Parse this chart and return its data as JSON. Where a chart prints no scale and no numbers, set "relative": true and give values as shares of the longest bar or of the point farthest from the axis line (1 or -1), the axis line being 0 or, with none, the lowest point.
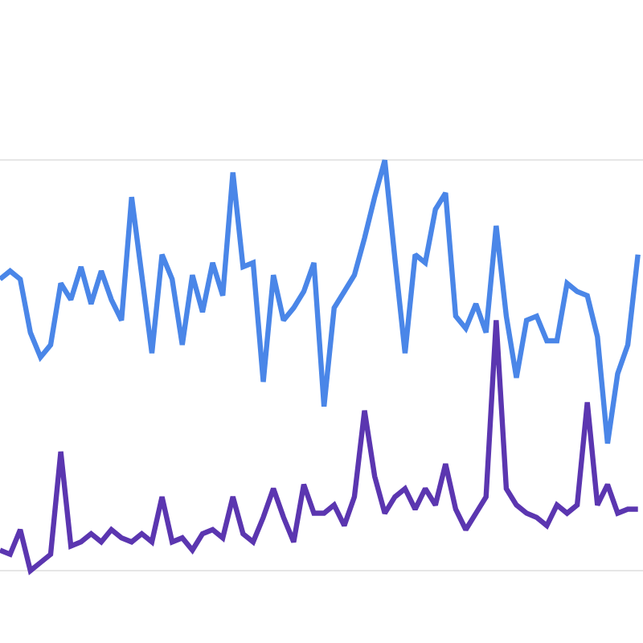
{
  "chart_data": {
    "type": "line",
    "relative": true,
    "grid": "y",
    "marker": "none",
    "line_style": "solid",
    "categories": [
      null,
      null,
      null,
      null,
      null,
      null,
      null,
      null,
      null,
      null,
      null,
      null,
      null,
      null,
      null,
      null,
      null,
      null,
      null,
      null,
      null,
      null,
      null,
      null,
      null,
      null,
      null,
      null,
      null,
      null,
      null,
      null,
      null,
      null,
      null,
      null,
      null,
      null,
      null,
      null,
      null,
      null,
      null,
      null,
      null,
      null,
      null,
      null,
      null,
      null,
      null,
      null,
      null,
      null,
      null,
      null,
      null,
      null,
      null,
      null,
      null,
      null,
      null,
      null
    ],
    "series": [
      {
        "color": "#4a86e8",
        "values": [
          0.71,
          0.73,
          0.71,
          0.58,
          0.52,
          0.55,
          0.7,
          0.66,
          0.74,
          0.65,
          0.73,
          0.66,
          0.61,
          0.91,
          0.72,
          0.53,
          0.77,
          0.71,
          0.55,
          0.72,
          0.63,
          0.75,
          0.67,
          0.97,
          0.74,
          0.75,
          0.46,
          0.72,
          0.61,
          0.64,
          0.68,
          0.75,
          0.4,
          0.64,
          0.68,
          0.72,
          0.81,
          0.91,
          1,
          0.76,
          0.53,
          0.77,
          0.75,
          0.88,
          0.92,
          0.62,
          0.59,
          0.65,
          0.58,
          0.84,
          0.62,
          0.47,
          0.61,
          0.62,
          0.56,
          0.56,
          0.7,
          0.68,
          0.67,
          0.57,
          0.31,
          0.48,
          0.55,
          0.77
        ]
      },
      {
        "color": "#5b36b0",
        "values": [
          0.05,
          0.04,
          0.1,
          0,
          0.02,
          0.04,
          0.29,
          0.06,
          0.07,
          0.09,
          0.07,
          0.1,
          0.08,
          0.07,
          0.09,
          0.07,
          0.18,
          0.07,
          0.08,
          0.05,
          0.09,
          0.1,
          0.08,
          0.18,
          0.09,
          0.07,
          0.13,
          0.2,
          0.13,
          0.07,
          0.21,
          0.14,
          0.14,
          0.16,
          0.11,
          0.18,
          0.39,
          0.23,
          0.14,
          0.18,
          0.2,
          0.15,
          0.2,
          0.16,
          0.26,
          0.15,
          0.1,
          0.14,
          0.18,
          0.61,
          0.2,
          0.16,
          0.14,
          0.13,
          0.11,
          0.16,
          0.14,
          0.16,
          0.41,
          0.16,
          0.21,
          0.14,
          0.15,
          0.15
        ]
      }
    ]
  }
}
